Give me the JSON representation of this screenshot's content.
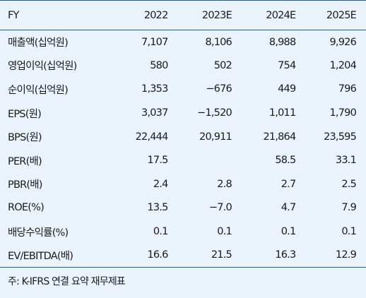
{
  "header": [
    "FY",
    "2022",
    "2023E",
    "2024E",
    "2025E"
  ],
  "rows": [
    {
      "label": "매출액(십억원)",
      "values": [
        "7,107",
        "8,106",
        "8,988",
        "9,926"
      ]
    },
    {
      "label": "영업이익(십억원)",
      "values": [
        "580",
        "502",
        "754",
        "1,204"
      ]
    },
    {
      "label": "순이익(십억원)",
      "values": [
        "1,353",
        "−676",
        "449",
        "796"
      ]
    },
    {
      "label": "EPS(원)",
      "values": [
        "3,037",
        "−1,520",
        "1,011",
        "1,790"
      ]
    },
    {
      "label": "BPS(원)",
      "values": [
        "22,444",
        "20,911",
        "21,864",
        "23,595"
      ]
    },
    {
      "label": "PER(배)",
      "values": [
        "17.5",
        "",
        "58.5",
        "33.1"
      ]
    },
    {
      "label": "PBR(배)",
      "values": [
        "2.4",
        "2.8",
        "2.7",
        "2.5"
      ]
    },
    {
      "label": "ROE(%)",
      "values": [
        "13.5",
        "−7.0",
        "4.7",
        "7.9"
      ]
    },
    {
      "label": "배당수익률(%)",
      "values": [
        "0.1",
        "0.1",
        "0.1",
        "0.1"
      ]
    },
    {
      "label": "EV/EBITDA(배)",
      "values": [
        "16.6",
        "21.5",
        "16.3",
        "12.9"
      ]
    }
  ],
  "note": "주: K-IFRS 연결 요약 재무제표",
  "colors": {
    "background": "#eaf3fb",
    "rule": "#1f5fa0"
  }
}
